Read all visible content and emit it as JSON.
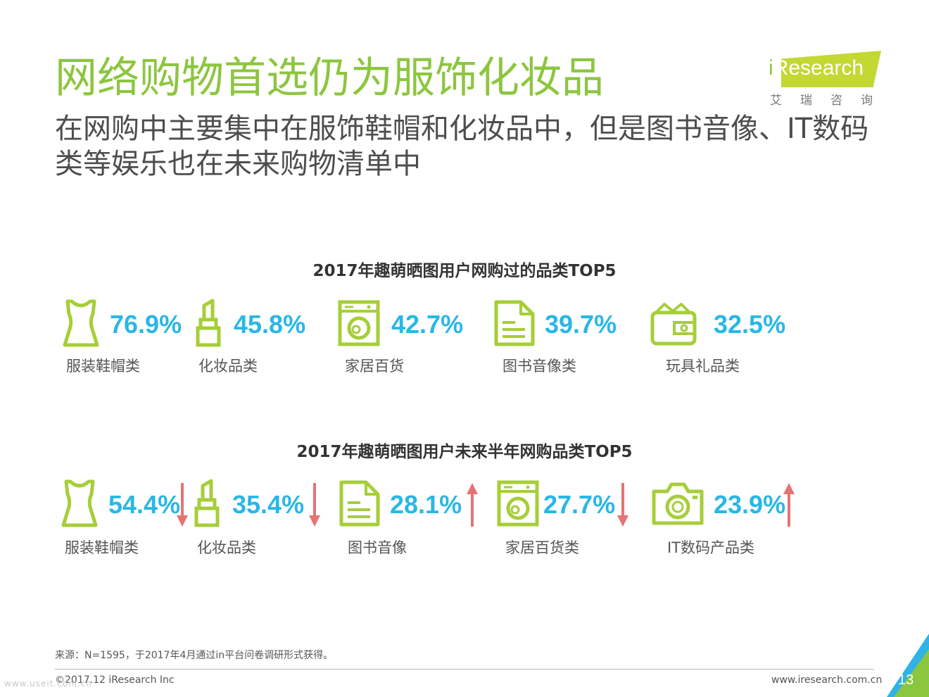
{
  "title": "网络购物首选仍为服饰化妆品",
  "subtitle": "在网购中主要集中在服饰鞋帽和化妆品中，但是图书音像、IT数码类等娱乐也在未来购物清单中",
  "logo": {
    "brand": "Research",
    "brand_prefix": "i",
    "cn": "艾瑞咨询"
  },
  "colors": {
    "title_green": "#8cc63f",
    "percent_blue": "#29b7e6",
    "icon_green": "#a6ce39",
    "arrow_red": "#e57373"
  },
  "section1": {
    "title": "2017年趣萌晒图用户网购过的品类TOP5",
    "items": [
      {
        "icon": "dress-icon",
        "pct": "76.9%",
        "label": "服装鞋帽类"
      },
      {
        "icon": "lipstick-icon",
        "pct": "45.8%",
        "label": "化妆品类"
      },
      {
        "icon": "washing-machine-icon",
        "pct": "42.7%",
        "label": "家居百货"
      },
      {
        "icon": "document-icon",
        "pct": "39.7%",
        "label": "图书音像类"
      },
      {
        "icon": "wallet-icon",
        "pct": "32.5%",
        "label": "玩具礼品类"
      }
    ]
  },
  "section2": {
    "title": "2017年趣萌晒图用户未来半年网购品类TOP5",
    "items": [
      {
        "icon": "dress-icon",
        "pct": "54.4%",
        "label": "服装鞋帽类",
        "trend": "down"
      },
      {
        "icon": "lipstick-icon",
        "pct": "35.4%",
        "label": "化妆品类",
        "trend": "down"
      },
      {
        "icon": "document-icon",
        "pct": "28.1%",
        "label": "图书音像",
        "trend": "up"
      },
      {
        "icon": "washing-machine-icon",
        "pct": "27.7%",
        "label": "家居百货类",
        "trend": "down"
      },
      {
        "icon": "camera-icon",
        "pct": "23.9%",
        "label": "IT数码产品类",
        "trend": "up"
      }
    ]
  },
  "footer": {
    "source": "来源：N=1595，于2017年4月通过in平台问卷调研形式获得。",
    "copyright": "©2017.12 iResearch Inc",
    "website": "www.iresearch.com.cn",
    "page": "13",
    "watermark": "www.useit.com.cn"
  }
}
